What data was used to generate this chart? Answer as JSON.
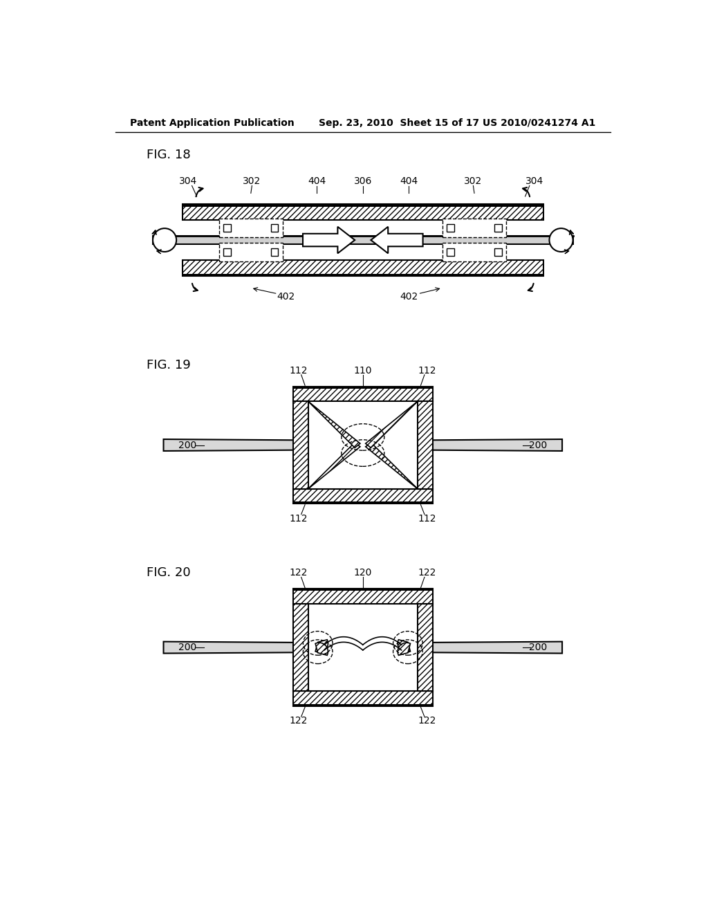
{
  "bg_color": "#ffffff",
  "text_color": "#000000",
  "header_left": "Patent Application Publication",
  "header_mid": "Sep. 23, 2010  Sheet 15 of 17",
  "header_right": "US 2010/0241274 A1",
  "fig18_label": "FIG. 18",
  "fig19_label": "FIG. 19",
  "fig20_label": "FIG. 20",
  "line_color": "#000000"
}
